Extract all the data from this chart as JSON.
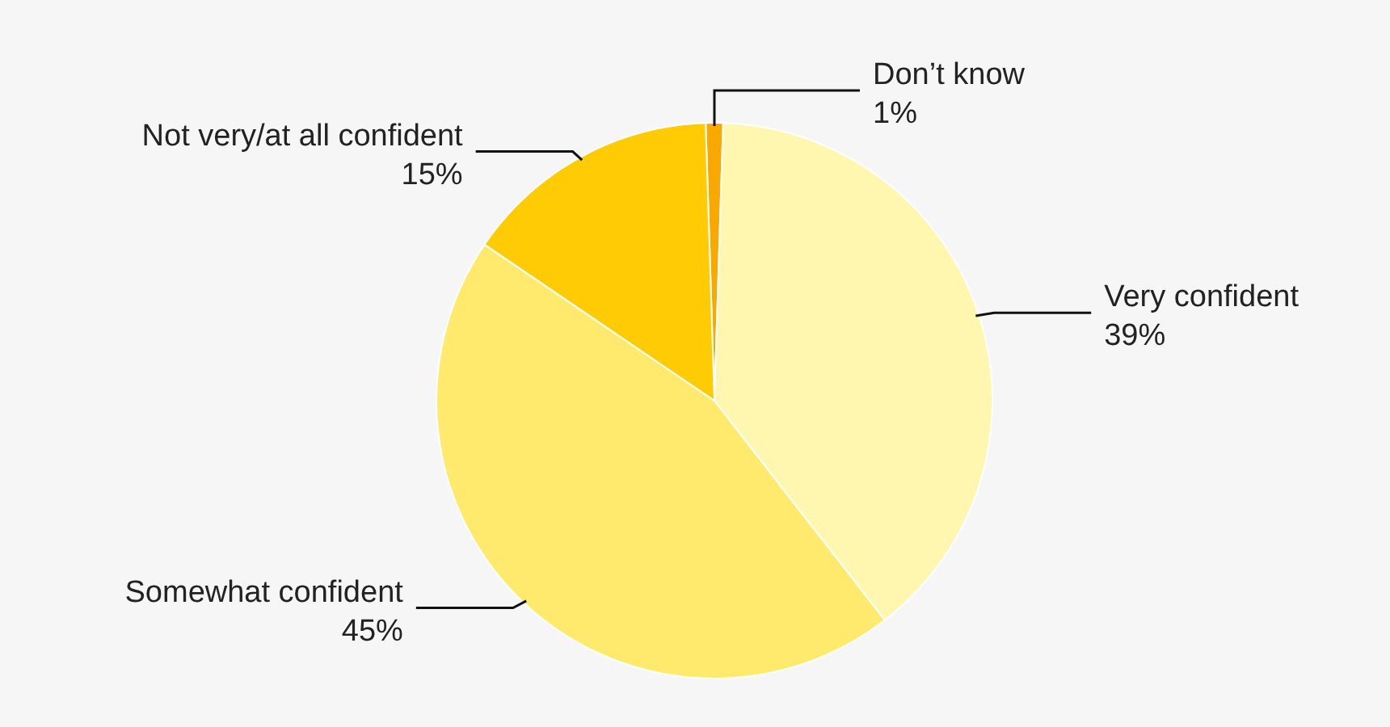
{
  "chart_data": {
    "type": "pie",
    "categories": [
      "Don’t know",
      "Very confident",
      "Somewhat confident",
      "Not very/at all confident"
    ],
    "values": [
      1,
      39,
      45,
      15
    ],
    "value_labels": [
      "1%",
      "39%",
      "45%",
      "15%"
    ],
    "colors": [
      "#f9a800",
      "#fff6b0",
      "#ffea6e",
      "#ffcb05"
    ]
  }
}
